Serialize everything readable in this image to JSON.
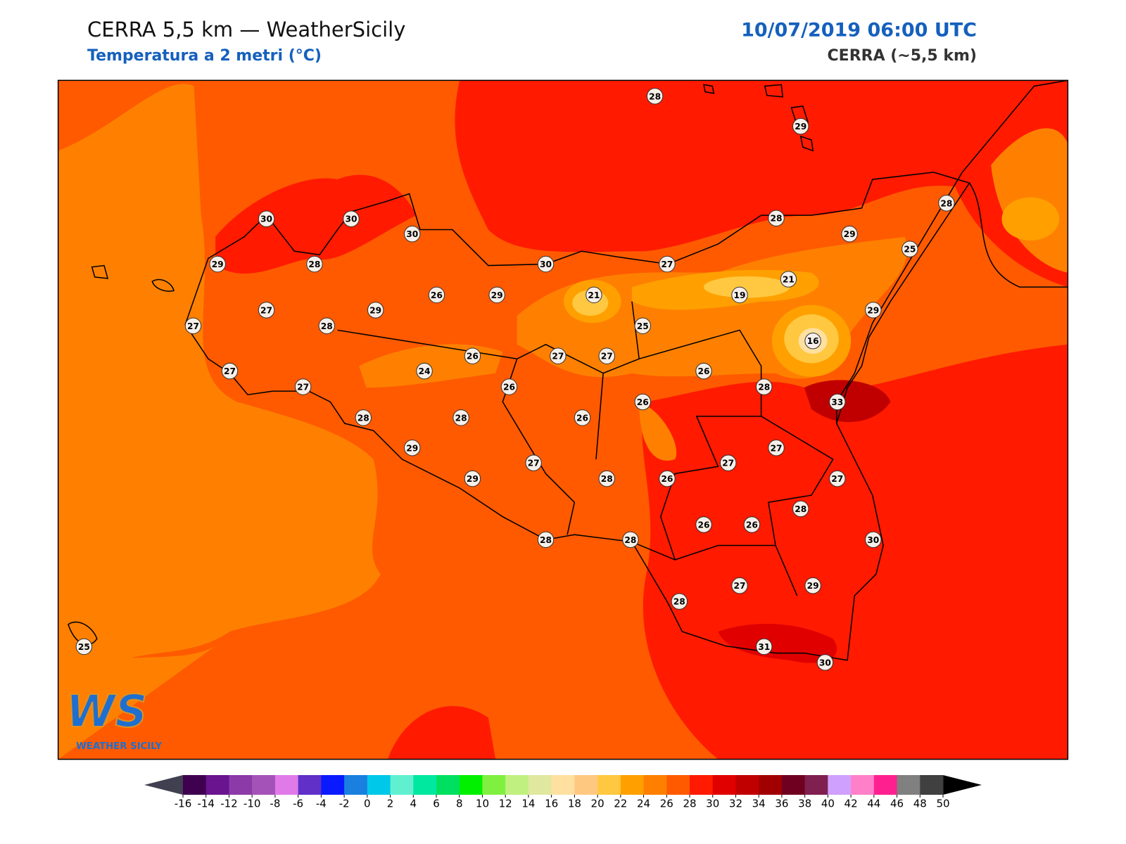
{
  "header": {
    "title": "CERRA 5,5 km — WeatherSicily",
    "subtitle": "Temperatura a 2 metri (°C)",
    "datetime": "10/07/2019 06:00 UTC",
    "model": "CERRA (~5,5 km)"
  },
  "logo": {
    "mark": "WS",
    "name": "WEATHER SICILY"
  },
  "stations": [
    28,
    29,
    28,
    30,
    30,
    30,
    28,
    29,
    25,
    29,
    28,
    30,
    27,
    21,
    26,
    29,
    21,
    19,
    27,
    29,
    29,
    27,
    28,
    25,
    16,
    26,
    27,
    27,
    27,
    24,
    26,
    27,
    26,
    28,
    26,
    33,
    28,
    28,
    26,
    29,
    27,
    27,
    27,
    29,
    28,
    26,
    27,
    28,
    26,
    26,
    28,
    28,
    30,
    27,
    29,
    28,
    31,
    30,
    25
  ],
  "colorbar": {
    "ticks": [
      -16,
      -14,
      -12,
      -10,
      -8,
      -6,
      -4,
      -2,
      0,
      2,
      4,
      6,
      8,
      10,
      12,
      14,
      16,
      18,
      20,
      22,
      24,
      26,
      28,
      30,
      32,
      34,
      36,
      38,
      40,
      42,
      44,
      46,
      48,
      50
    ],
    "colors": [
      "#3f0050",
      "#6a1490",
      "#8b3aa8",
      "#a552b8",
      "#e07ae8",
      "#6030c8",
      "#0a1aff",
      "#1a80e0",
      "#00c8e8",
      "#60f0d0",
      "#00e8a0",
      "#00e060",
      "#00f000",
      "#80f040",
      "#c0f080",
      "#e0e8a0",
      "#ffe0a0",
      "#ffc880",
      "#ffc840",
      "#ffa000",
      "#ff8000",
      "#ff5a00",
      "#ff1a00",
      "#e00000",
      "#c00000",
      "#a00000",
      "#700020",
      "#802050",
      "#d0a0ff",
      "#ff80c8",
      "#ff2090",
      "#808080",
      "#404040"
    ],
    "under_color": "#404050",
    "over_color": "#000000"
  }
}
